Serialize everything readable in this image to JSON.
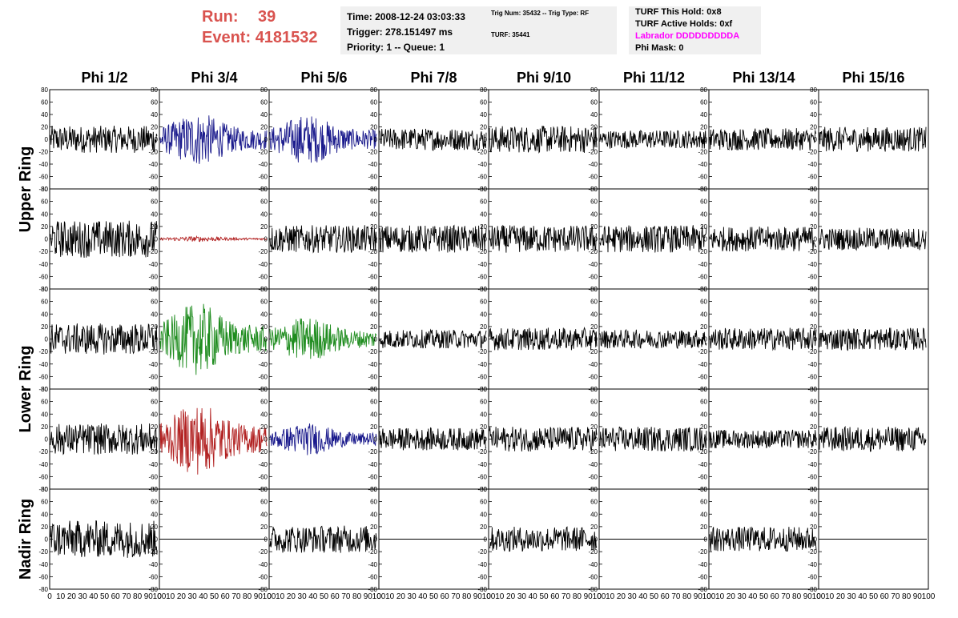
{
  "run": {
    "label": "Run:",
    "value": "39"
  },
  "event": {
    "label": "Event:",
    "value": "4181532"
  },
  "time_box": {
    "time": "Time: 2008-12-24 03:03:33",
    "trigger": "Trigger: 278.151497 ms",
    "priority": "Priority: 1 -- Queue: 1"
  },
  "trig_box": {
    "trig": "Trig Num: 35432 -- Trig Type: RF",
    "turf": "TURF: 35441"
  },
  "turf_box": {
    "hold": "TURF This Hold: 0x8",
    "active": "TURF Active Holds: 0xf",
    "labrador": "Labrador DDDDDDDDDA",
    "phimask": "Phi Mask: 0"
  },
  "columns": [
    "Phi 1/2",
    "Phi 3/4",
    "Phi 5/6",
    "Phi 7/8",
    "Phi 9/10",
    "Phi 11/12",
    "Phi 13/14",
    "Phi 15/16"
  ],
  "rows": [
    "Upper Ring",
    "Lower Ring",
    "Nadir Ring"
  ],
  "colors": {
    "black": "#000000",
    "blue": "#1a1a8c",
    "red": "#b22222",
    "green": "#1e8c1e",
    "accent": "#d9534f",
    "magenta": "#ff00ff"
  },
  "chart_data": {
    "type": "line",
    "ylim": [
      -80,
      80
    ],
    "xlim": [
      0,
      100
    ],
    "yticks": [
      80,
      60,
      40,
      20,
      0,
      -20,
      -40,
      -60,
      -80
    ],
    "ytick_labels": [
      "80",
      "60",
      "40",
      "20",
      "0",
      "-20",
      "-40",
      "-60",
      "-80"
    ],
    "xticks": [
      0,
      10,
      20,
      30,
      40,
      50,
      60,
      70,
      80,
      90,
      100
    ],
    "panel_rows": 5,
    "panel_cols": 8,
    "panels": [
      [
        "black",
        "blue",
        "blue",
        "black",
        "black",
        "black",
        "black",
        "black"
      ],
      [
        "black",
        "red",
        "black",
        "black",
        "black",
        "black",
        "black",
        "black"
      ],
      [
        "black",
        "green",
        "green",
        "black",
        "black",
        "black",
        "black",
        "black"
      ],
      [
        "black",
        "red",
        "blue",
        "black",
        "black",
        "black",
        "black",
        "black"
      ],
      [
        "black",
        "flat",
        "black",
        "flat",
        "black",
        "flat",
        "black",
        "flat"
      ]
    ],
    "amplitudes": [
      [
        22,
        30,
        28,
        18,
        22,
        15,
        18,
        20
      ],
      [
        30,
        3,
        22,
        22,
        22,
        22,
        20,
        18
      ],
      [
        25,
        40,
        25,
        15,
        18,
        15,
        18,
        18
      ],
      [
        25,
        40,
        18,
        18,
        20,
        20,
        15,
        20
      ],
      [
        30,
        0,
        22,
        0,
        20,
        0,
        20,
        0
      ]
    ]
  }
}
